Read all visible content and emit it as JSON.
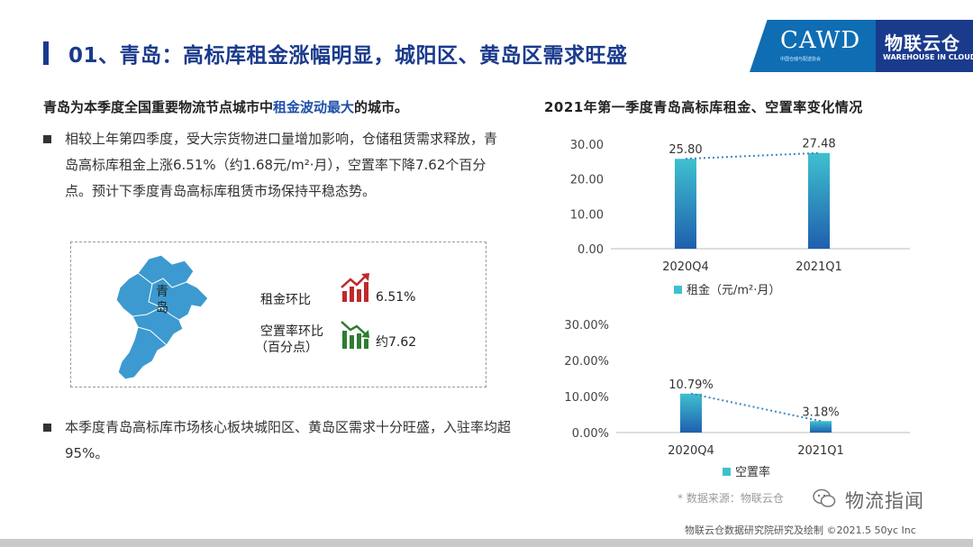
{
  "header": {
    "title": "01、青岛：高标库租金涨幅明显，城阳区、黄岛区需求旺盛",
    "logo_cawd": "CAWD",
    "logo_cawd_sub": "中国仓储与配送协会",
    "logo_wc_cn": "物联云仓",
    "logo_wc_en": "WAREHOUSE IN CLOUD"
  },
  "content": {
    "lead_prefix": "青岛为本季度全国重要物流节点城市中",
    "lead_highlight": "租金波动最大",
    "lead_suffix": "的城市。",
    "bullet1": "相较上年第四季度，受大宗货物进口量增加影响，仓储租赁需求释放，青岛高标库租金上涨6.51%（约1.68元/m²·月），空置率下降7.62个百分点。预计下季度青岛高标库租赁市场保持平稳态势。",
    "bullet2": "本季度青岛高标库市场核心板块城阳区、黄岛区需求十分旺盛，入驻率均超95%。"
  },
  "map_card": {
    "map_label": "青岛",
    "rent_label": "租金环比",
    "rent_value": "6.51%",
    "vacancy_label_1": "空置率环比",
    "vacancy_label_2": "（百分点）",
    "vacancy_value": "约7.62",
    "up_color": "#c0282c",
    "down_color": "#2e7d32"
  },
  "chart_title": "2021年第一季度青岛高标库租金、空置率变化情况",
  "chart_data": [
    {
      "type": "bar",
      "categories": [
        "2020Q4",
        "2021Q1"
      ],
      "series": [
        {
          "name": "租金（元/m²·月）",
          "values": [
            25.8,
            27.48
          ]
        }
      ],
      "data_labels": [
        "25.80",
        "27.48"
      ],
      "yticks": [
        "0.00",
        "10.00",
        "20.00",
        "30.00"
      ],
      "ylim": [
        0,
        30
      ],
      "legend": "bottom",
      "trend_line": true
    },
    {
      "type": "bar",
      "categories": [
        "2020Q4",
        "2021Q1"
      ],
      "series": [
        {
          "name": "空置率",
          "values": [
            10.79,
            3.18
          ]
        }
      ],
      "data_labels": [
        "10.79%",
        "3.18%"
      ],
      "yticks": [
        "0.00%",
        "10.00%",
        "20.00%",
        "30.00%"
      ],
      "ylim": [
        0,
        30
      ],
      "legend": "bottom",
      "trend_line": true
    }
  ],
  "colors": {
    "bar_top": "#3fc0cf",
    "bar_bottom": "#1f5fae",
    "trend": "#3a86c8",
    "title": "#1a3a8c"
  },
  "footer": {
    "source": "* 数据来源：物联云仓",
    "watermark": "物流指闻",
    "credit": "物联云仓数据研究院研究及绘制   ©2021.5 50yc Inc"
  }
}
